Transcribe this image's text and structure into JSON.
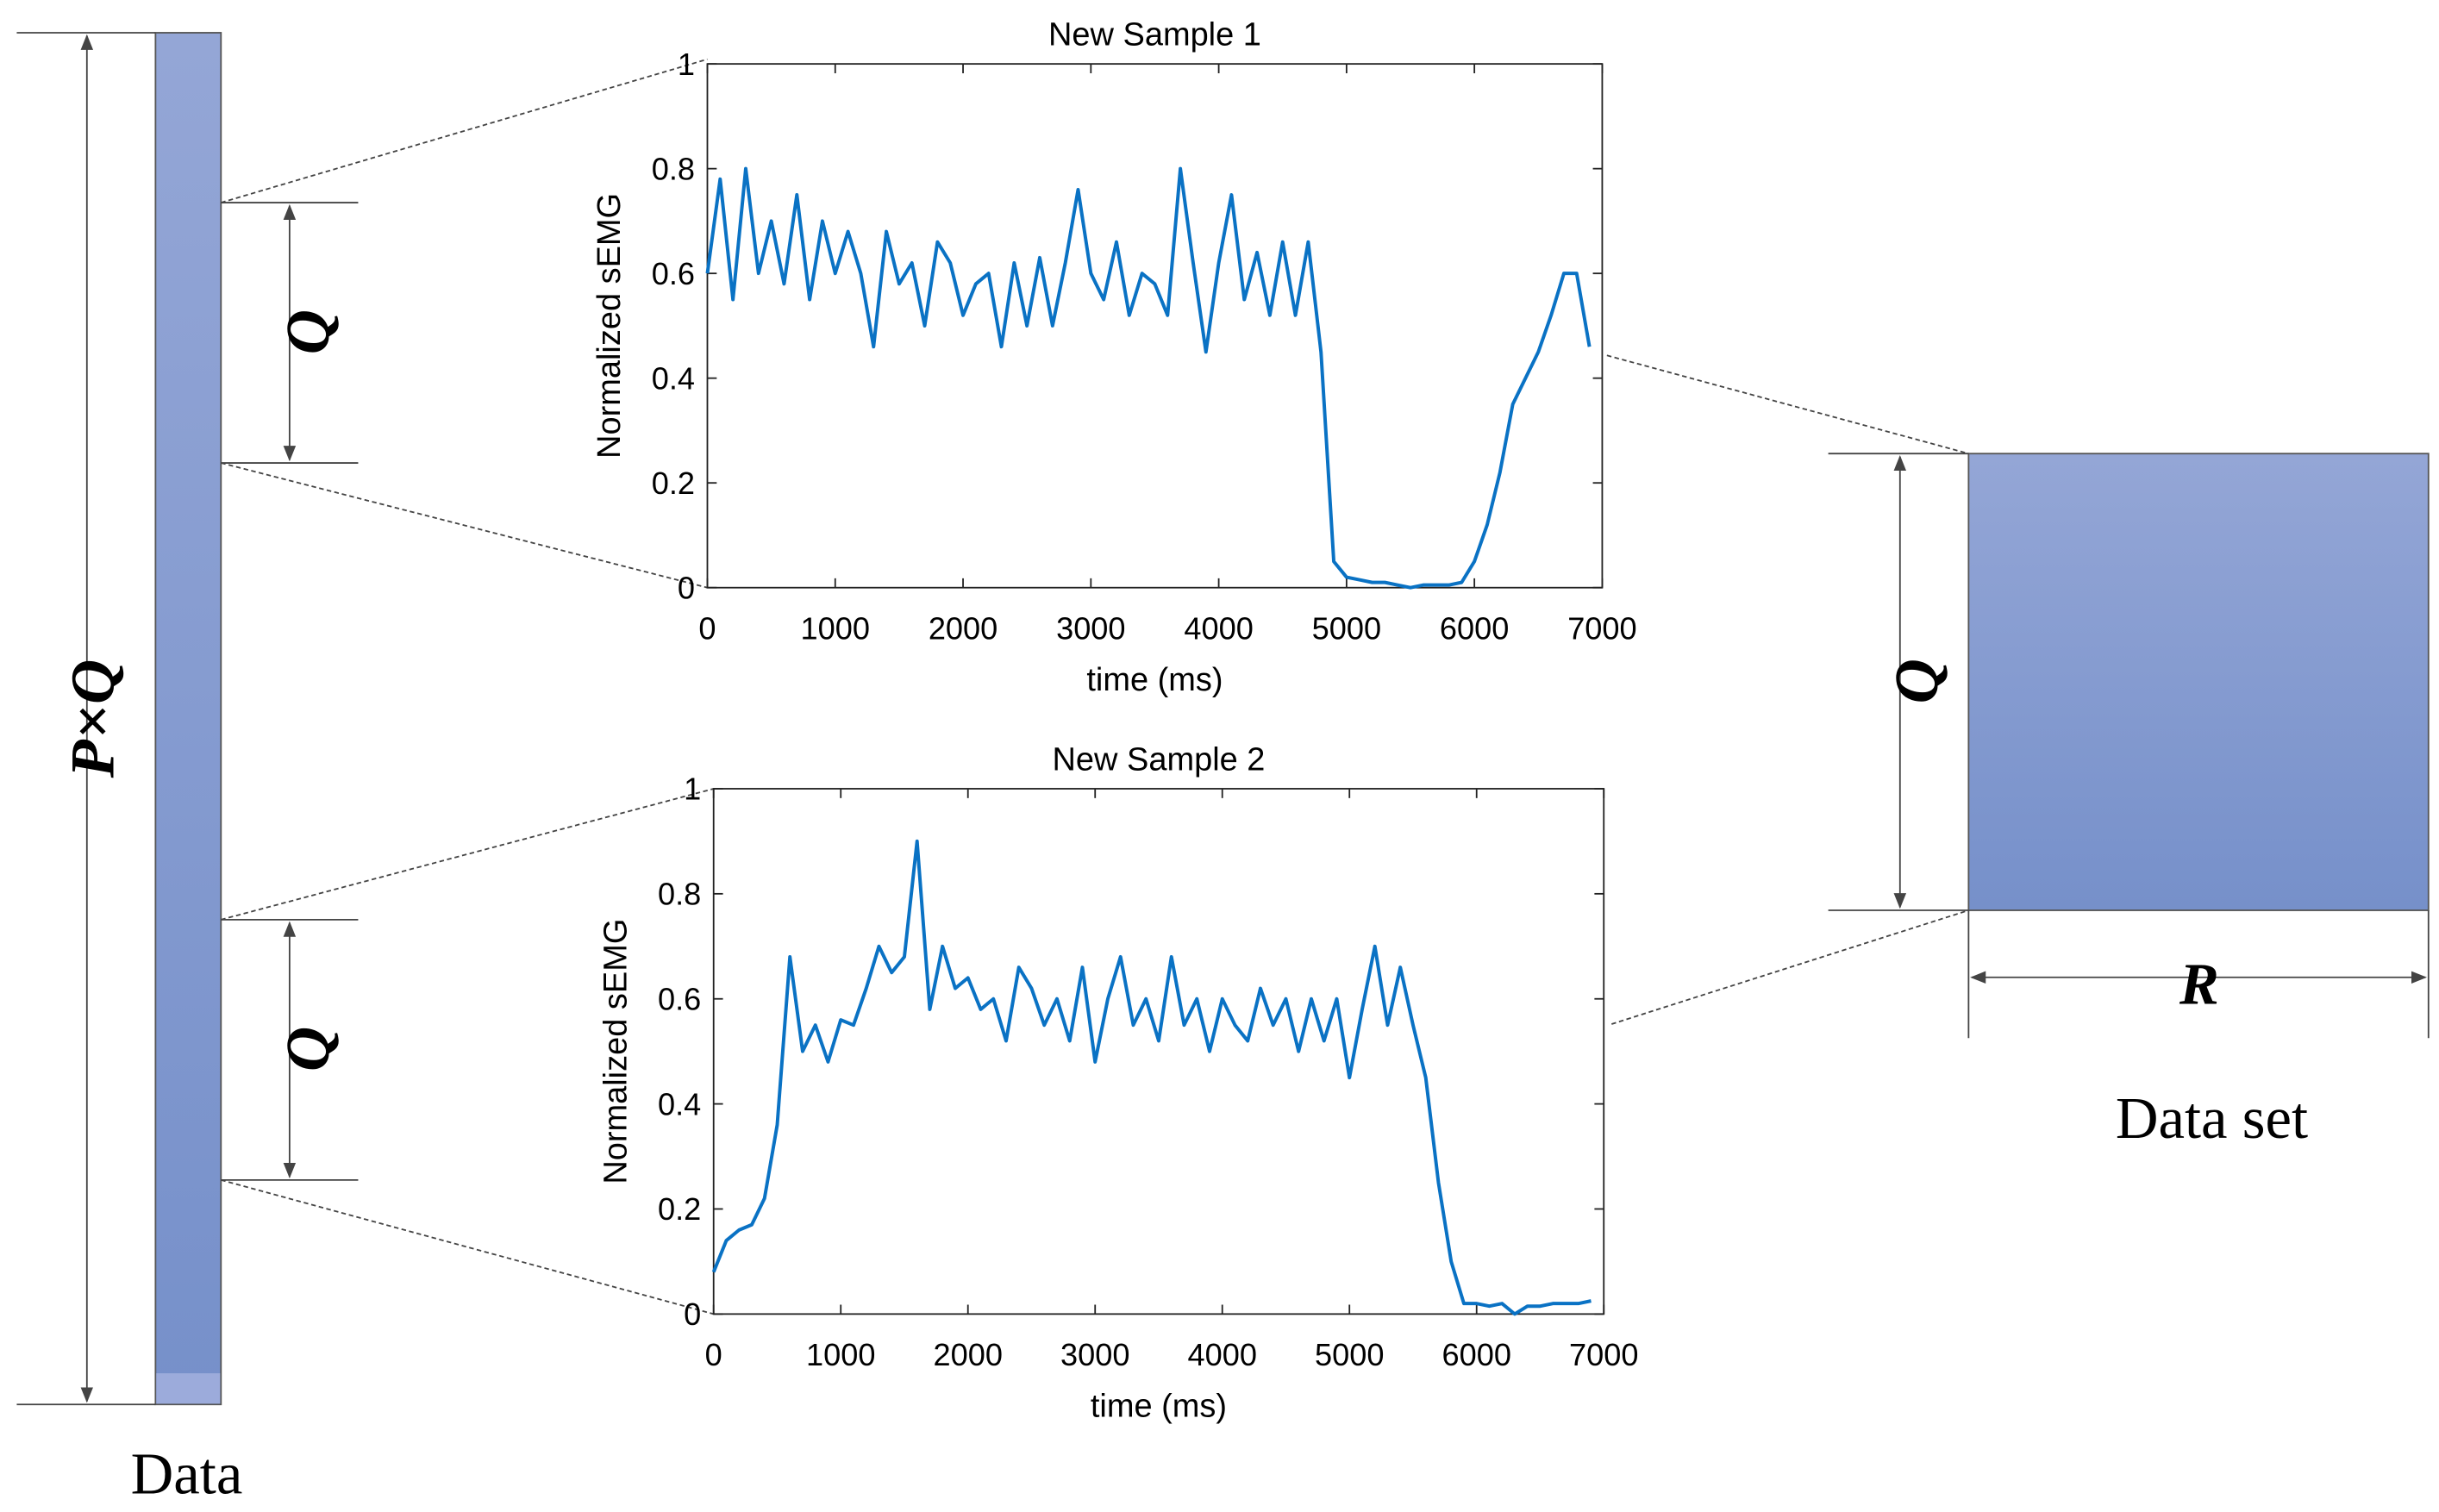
{
  "diagram": {
    "left_total": "P×Q",
    "segment_labels": [
      "Q",
      "Q"
    ],
    "dataset_height": "Q",
    "dataset_width": "R",
    "left_caption": "Data",
    "right_caption": "Data set"
  },
  "chart_data": [
    {
      "type": "line",
      "title": "New Sample 1",
      "x_label": "time (ms)",
      "y_label": "Normalized sEMG",
      "color": "#0a72c4",
      "x": [
        0,
        100,
        200,
        300,
        400,
        500,
        600,
        700,
        800,
        900,
        1000,
        1100,
        1200,
        1300,
        1400,
        1500,
        1600,
        1700,
        1800,
        1900,
        2000,
        2100,
        2200,
        2300,
        2400,
        2500,
        2600,
        2700,
        2800,
        2900,
        3000,
        3100,
        3200,
        3300,
        3400,
        3500,
        3600,
        3700,
        3800,
        3900,
        4000,
        4100,
        4200,
        4300,
        4400,
        4500,
        4600,
        4700,
        4800,
        4900,
        5000,
        5100,
        5200,
        5300,
        5400,
        5500,
        5600,
        5700,
        5800,
        5900,
        6000,
        6100,
        6200,
        6300,
        6400,
        6500,
        6600,
        6700,
        6800,
        6900
      ],
      "values": [
        0.6,
        0.78,
        0.55,
        0.8,
        0.6,
        0.7,
        0.58,
        0.75,
        0.55,
        0.7,
        0.6,
        0.68,
        0.6,
        0.46,
        0.68,
        0.58,
        0.62,
        0.5,
        0.66,
        0.62,
        0.52,
        0.58,
        0.6,
        0.46,
        0.62,
        0.5,
        0.63,
        0.5,
        0.62,
        0.76,
        0.6,
        0.55,
        0.66,
        0.52,
        0.6,
        0.58,
        0.52,
        0.8,
        0.62,
        0.45,
        0.62,
        0.75,
        0.55,
        0.64,
        0.52,
        0.66,
        0.52,
        0.66,
        0.45,
        0.05,
        0.02,
        0.015,
        0.01,
        0.01,
        0.005,
        0,
        0.005,
        0.005,
        0.005,
        0.01,
        0.05,
        0.12,
        0.22,
        0.35,
        0.4,
        0.45,
        0.52,
        0.6,
        0.6,
        0.46
      ],
      "xlim": [
        0,
        7000
      ],
      "ylim": [
        0,
        1
      ],
      "xticks": [
        0,
        1000,
        2000,
        3000,
        4000,
        5000,
        6000,
        7000
      ],
      "yticks": [
        0,
        0.2,
        0.4,
        0.6,
        0.8,
        1
      ]
    },
    {
      "type": "line",
      "title": "New Sample 2",
      "x_label": "time (ms)",
      "y_label": "Normalized sEMG",
      "color": "#0a72c4",
      "x": [
        0,
        100,
        200,
        300,
        400,
        500,
        600,
        700,
        800,
        900,
        1000,
        1100,
        1200,
        1300,
        1400,
        1500,
        1600,
        1700,
        1800,
        1900,
        2000,
        2100,
        2200,
        2300,
        2400,
        2500,
        2600,
        2700,
        2800,
        2900,
        3000,
        3100,
        3200,
        3300,
        3400,
        3500,
        3600,
        3700,
        3800,
        3900,
        4000,
        4100,
        4200,
        4300,
        4400,
        4500,
        4600,
        4700,
        4800,
        4900,
        5000,
        5100,
        5200,
        5300,
        5400,
        5500,
        5600,
        5700,
        5800,
        5900,
        6000,
        6100,
        6200,
        6300,
        6400,
        6500,
        6600,
        6700,
        6800,
        6900
      ],
      "values": [
        0.08,
        0.14,
        0.16,
        0.17,
        0.22,
        0.36,
        0.68,
        0.5,
        0.55,
        0.48,
        0.56,
        0.55,
        0.62,
        0.7,
        0.65,
        0.68,
        0.9,
        0.58,
        0.7,
        0.62,
        0.64,
        0.58,
        0.6,
        0.52,
        0.66,
        0.62,
        0.55,
        0.6,
        0.52,
        0.66,
        0.48,
        0.6,
        0.68,
        0.55,
        0.6,
        0.52,
        0.68,
        0.55,
        0.6,
        0.5,
        0.6,
        0.55,
        0.52,
        0.62,
        0.55,
        0.6,
        0.5,
        0.6,
        0.52,
        0.6,
        0.45,
        0.58,
        0.7,
        0.55,
        0.66,
        0.55,
        0.45,
        0.25,
        0.1,
        0.02,
        0.02,
        0.015,
        0.02,
        0,
        0.015,
        0.015,
        0.02,
        0.02,
        0.02,
        0.025
      ],
      "xlim": [
        0,
        7000
      ],
      "ylim": [
        0,
        1
      ],
      "xticks": [
        0,
        1000,
        2000,
        3000,
        4000,
        5000,
        6000,
        7000
      ],
      "yticks": [
        0,
        0.2,
        0.4,
        0.6,
        0.8,
        1
      ]
    }
  ]
}
